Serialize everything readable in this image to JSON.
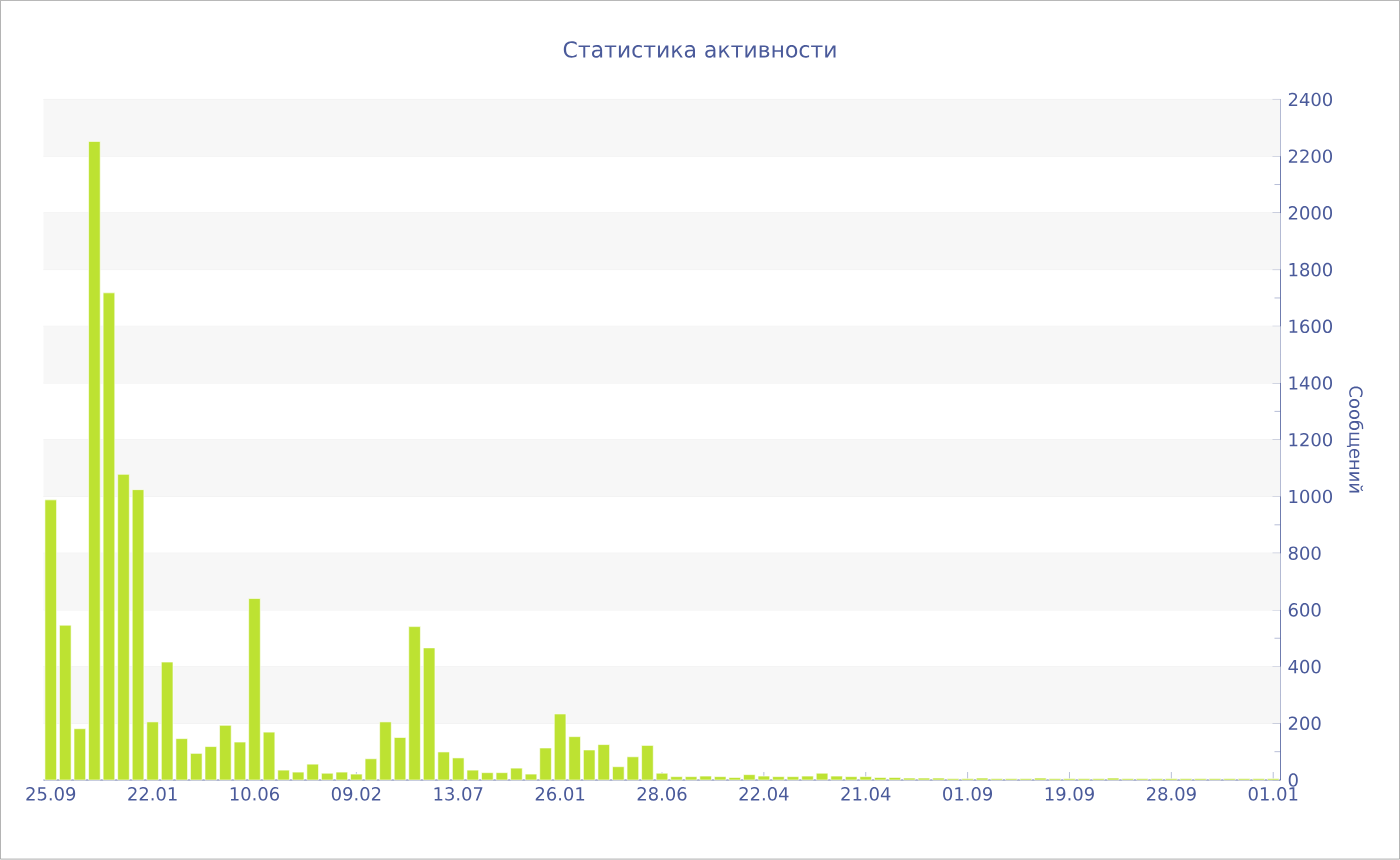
{
  "chart_data": {
    "type": "bar",
    "title": "Статистика активности",
    "ylabel": "Сообщений",
    "categories": [
      "25.09",
      null,
      null,
      null,
      null,
      null,
      null,
      "22.01",
      null,
      null,
      null,
      null,
      null,
      null,
      "10.06",
      null,
      null,
      null,
      null,
      null,
      null,
      "09.02",
      null,
      null,
      null,
      null,
      null,
      null,
      "13.07",
      null,
      null,
      null,
      null,
      null,
      null,
      "26.01",
      null,
      null,
      null,
      null,
      null,
      null,
      "28.06",
      null,
      null,
      null,
      null,
      null,
      null,
      "22.04",
      null,
      null,
      null,
      null,
      null,
      null,
      "21.04",
      null,
      null,
      null,
      null,
      null,
      null,
      "01.09",
      null,
      null,
      null,
      null,
      null,
      null,
      "19.09",
      null,
      null,
      null,
      null,
      null,
      null,
      "28.09",
      null,
      null,
      null,
      null,
      null,
      null,
      "01.01"
    ],
    "values": [
      988,
      546,
      181,
      2252,
      1718,
      1078,
      1024,
      205,
      416,
      146,
      94,
      118,
      193,
      134,
      640,
      169,
      35,
      28,
      56,
      24,
      28,
      21,
      75,
      205,
      150,
      541,
      466,
      99,
      78,
      35,
      26,
      26,
      42,
      21,
      113,
      233,
      153,
      106,
      125,
      47,
      82,
      122,
      24,
      12,
      12,
      14,
      12,
      9,
      19,
      14,
      12,
      12,
      14,
      24,
      14,
      12,
      12,
      9,
      9,
      7,
      7,
      7,
      5,
      5,
      7,
      5,
      5,
      5,
      7,
      5,
      5,
      5,
      5,
      7,
      5,
      5,
      5,
      5,
      5,
      5,
      5,
      5,
      5,
      5,
      5
    ],
    "color": "#bde232",
    "ylim": [
      0,
      2400
    ],
    "yticks": [
      0,
      200,
      400,
      600,
      800,
      1000,
      1200,
      1400,
      1600,
      1800,
      2000,
      2200,
      2400
    ],
    "grid": true
  }
}
